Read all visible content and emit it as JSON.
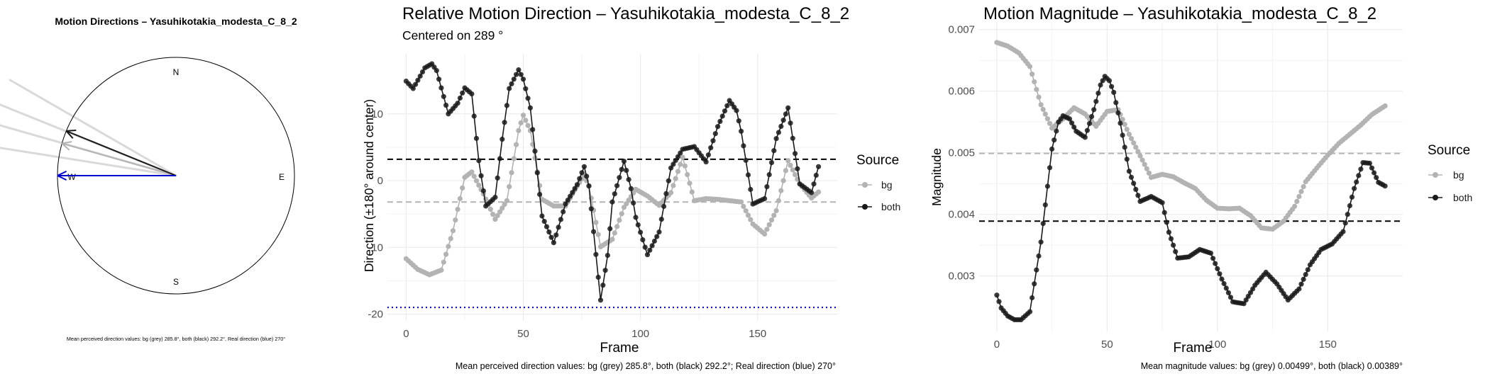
{
  "colors": {
    "bg": "#b3b3b3",
    "both": "#1a1a1a",
    "real": "#0000cc",
    "grid": "#ebebeb",
    "axis_text": "#4d4d4d"
  },
  "chart_data": [
    {
      "type": "compass",
      "title": "Motion Directions – Yasuhikotakia_modesta_C_8_2",
      "cardinals": {
        "n": "N",
        "e": "E",
        "s": "S",
        "w": "W"
      },
      "arrows": [
        {
          "series": "bg",
          "direction_deg": 285.8
        },
        {
          "series": "both",
          "direction_deg": 292.2
        },
        {
          "series": "real",
          "direction_deg": 270
        }
      ],
      "caption": "Mean perceived direction values: bg (grey) 285.8°, both (black) 292.2°, Real direction (blue) 270°"
    },
    {
      "type": "line",
      "title": "Relative Motion Direction – Yasuhikotakia_modesta_C_8_2",
      "subtitle": "Centered on  289 °",
      "xlabel": "Frame",
      "ylabel": "Direction (±180° around center)",
      "xlim": [
        -8,
        184
      ],
      "ylim": [
        -21,
        19
      ],
      "xticks": [
        0,
        50,
        100,
        150
      ],
      "yticks": [
        -20,
        -10,
        0,
        10
      ],
      "legend_title": "Source",
      "legend_position": "right",
      "series": [
        {
          "name": "bg",
          "x": [
            0,
            5,
            10,
            15,
            20,
            25,
            28,
            33,
            38,
            43,
            48,
            50,
            53,
            58,
            63,
            68,
            73,
            76,
            78,
            83,
            88,
            93,
            98,
            103,
            108,
            113,
            118,
            123,
            128,
            133,
            138,
            143,
            148,
            153,
            158,
            163,
            168,
            173,
            176
          ],
          "y": [
            -11.7,
            -13.3,
            -14.1,
            -13.4,
            -7.5,
            0.5,
            1.3,
            -2,
            -5.8,
            -3,
            7.5,
            9.8,
            7.5,
            -2.8,
            -3.8,
            -3.8,
            -0.8,
            0.8,
            -0.8,
            -9.9,
            -8.8,
            -4,
            -1.3,
            -2.3,
            -3.7,
            -1.8,
            3.5,
            -3,
            -2.7,
            -2.8,
            -3,
            -3.2,
            -6.5,
            -8,
            -4.5,
            3,
            -0.5,
            -2.6,
            -1.7
          ]
        },
        {
          "name": "both",
          "x": [
            0,
            3,
            8,
            11,
            13,
            18,
            22,
            25,
            28,
            31,
            34,
            38,
            41,
            44,
            48,
            50,
            53,
            58,
            63,
            68,
            73,
            76,
            78,
            83,
            86,
            88,
            93,
            96,
            98,
            103,
            108,
            113,
            118,
            123,
            128,
            133,
            138,
            141,
            143,
            148,
            153,
            158,
            163,
            168,
            173,
            176
          ],
          "y": [
            14.9,
            13.8,
            16.9,
            17.5,
            16.5,
            10,
            11.6,
            13.9,
            13,
            3,
            -3.8,
            -2.5,
            6.2,
            13.8,
            16.6,
            15.2,
            10.9,
            -5.3,
            -9.3,
            -3.5,
            -0.6,
            2.1,
            -0.8,
            -17.9,
            -11.2,
            -3.2,
            2.9,
            -1.2,
            -5.5,
            -11.1,
            -7.7,
            1.9,
            4.7,
            5.1,
            2.8,
            8.1,
            12,
            10.5,
            7.4,
            -3.5,
            -2.7,
            6.3,
            10.9,
            -0.5,
            -1.8,
            2.1
          ]
        }
      ],
      "hlines": [
        {
          "series": "both",
          "y": 3.2
        },
        {
          "series": "bg",
          "y": -3.2
        },
        {
          "series": "real",
          "y": -19
        }
      ],
      "caption": "Mean perceived direction values: bg (grey) 285.8°, both (black) 292.2°; Real direction (blue) 270°"
    },
    {
      "type": "line",
      "title": "Motion Magnitude – Yasuhikotakia_modesta_C_8_2",
      "xlabel": "Frame",
      "ylabel": "Magnitude",
      "xlim": [
        -8,
        184
      ],
      "ylim": [
        0.0021,
        0.0071
      ],
      "xticks": [
        0,
        50,
        100,
        150
      ],
      "yticks": [
        0.003,
        0.004,
        0.005,
        0.006,
        0.007
      ],
      "legend_title": "Source",
      "legend_position": "right",
      "series": [
        {
          "name": "bg",
          "x": [
            0,
            5,
            10,
            15,
            20,
            25,
            30,
            35,
            40,
            45,
            50,
            55,
            60,
            65,
            70,
            75,
            80,
            85,
            90,
            95,
            100,
            105,
            110,
            115,
            120,
            125,
            130,
            135,
            140,
            145,
            150,
            155,
            160,
            165,
            170,
            176
          ],
          "y": [
            0.00679,
            0.00673,
            0.00662,
            0.0064,
            0.00578,
            0.0054,
            0.00555,
            0.00573,
            0.00563,
            0.00543,
            0.00567,
            0.0057,
            0.0053,
            0.00495,
            0.0046,
            0.00465,
            0.00461,
            0.00451,
            0.00442,
            0.00423,
            0.0041,
            0.00409,
            0.0041,
            0.00398,
            0.00378,
            0.00376,
            0.00389,
            0.00413,
            0.00453,
            0.00475,
            0.00496,
            0.00515,
            0.0053,
            0.00545,
            0.00562,
            0.00576
          ]
        },
        {
          "name": "both",
          "x": [
            0,
            2,
            5,
            8,
            11,
            15,
            20,
            25,
            28,
            30,
            33,
            36,
            40,
            44,
            47,
            49,
            51,
            53,
            56,
            60,
            65,
            70,
            75,
            78,
            82,
            87,
            92,
            97,
            102,
            107,
            112,
            117,
            122,
            127,
            132,
            137,
            142,
            147,
            152,
            157,
            162,
            166,
            169,
            173,
            176
          ],
          "y": [
            0.00269,
            0.00248,
            0.00235,
            0.00229,
            0.00229,
            0.00242,
            0.00355,
            0.00506,
            0.0055,
            0.0056,
            0.00555,
            0.00535,
            0.00525,
            0.0057,
            0.0061,
            0.00624,
            0.00617,
            0.00598,
            0.00548,
            0.0047,
            0.00421,
            0.00429,
            0.00419,
            0.00371,
            0.00329,
            0.00331,
            0.00343,
            0.00337,
            0.00295,
            0.00258,
            0.00255,
            0.00285,
            0.00306,
            0.00287,
            0.00261,
            0.00279,
            0.00318,
            0.00343,
            0.00352,
            0.00372,
            0.00442,
            0.00484,
            0.00483,
            0.00452,
            0.00446
          ]
        }
      ],
      "hlines": [
        {
          "series": "bg",
          "y": 0.00499
        },
        {
          "series": "both",
          "y": 0.00389
        }
      ],
      "caption": "Mean magnitude values: bg (grey) 0.00499°, both (black) 0.00389°"
    }
  ]
}
